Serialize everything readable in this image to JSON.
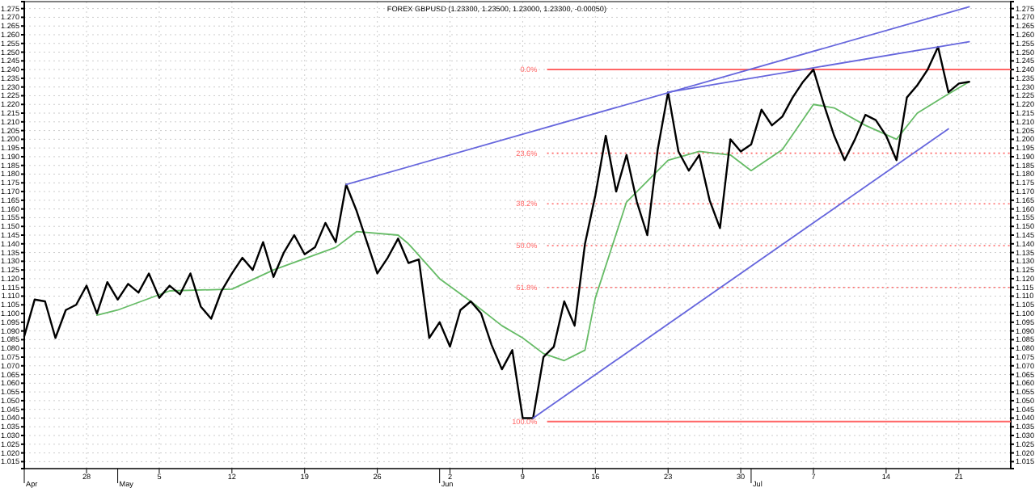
{
  "chart_data": {
    "type": "line",
    "title": "FOREX GBPUSD (1.23300, 1.23500, 1.23000, 1.23300, -0.00050)",
    "xlim": [
      "--04-22",
      "--07-26"
    ],
    "xticks": [
      {
        "value": "--04-28",
        "label": "28"
      },
      {
        "value": "--05-05",
        "label": "5"
      },
      {
        "value": "--05-12",
        "label": "12"
      },
      {
        "value": "--05-19",
        "label": "19"
      },
      {
        "value": "--05-26",
        "label": "26"
      },
      {
        "value": "--06-02",
        "label": "2"
      },
      {
        "value": "--06-09",
        "label": "9"
      },
      {
        "value": "--06-16",
        "label": "16"
      },
      {
        "value": "--06-23",
        "label": "23"
      },
      {
        "value": "--06-30",
        "label": "30"
      },
      {
        "value": "--07-07",
        "label": "7"
      },
      {
        "value": "--07-14",
        "label": "14"
      },
      {
        "value": "--07-21",
        "label": "21"
      }
    ],
    "ylim": [
      1.011,
      1.279
    ],
    "yticks": [
      1.015,
      {
        "value": 1.02,
        "label": "1.020"
      },
      1.025,
      {
        "value": 1.03,
        "label": "1.030"
      },
      1.035,
      {
        "value": 1.04,
        "label": "1.040"
      },
      1.045,
      {
        "value": 1.05,
        "label": "1.050"
      },
      1.055,
      {
        "value": 1.06,
        "label": "1.060"
      },
      1.065,
      {
        "value": 1.07,
        "label": "1.070"
      },
      1.075,
      {
        "value": 1.08,
        "label": "1.080"
      },
      1.085,
      {
        "value": 1.09,
        "label": "1.090"
      },
      1.095,
      {
        "value": 1.1,
        "label": "1.100"
      },
      1.105,
      {
        "value": 1.11,
        "label": "1.110"
      },
      1.115,
      {
        "value": 1.12,
        "label": "1.120"
      },
      1.125,
      {
        "value": 1.13,
        "label": "1.130"
      },
      1.135,
      {
        "value": 1.14,
        "label": "1.140"
      },
      1.145,
      {
        "value": 1.15,
        "label": "1.150"
      },
      1.155,
      {
        "value": 1.16,
        "label": "1.160"
      },
      1.165,
      {
        "value": 1.17,
        "label": "1.170"
      },
      1.175,
      {
        "value": 1.18,
        "label": "1.180"
      },
      1.185,
      {
        "value": 1.19,
        "label": "1.190"
      },
      1.195,
      {
        "value": 1.2,
        "label": "1.200"
      },
      1.205,
      {
        "value": 1.21,
        "label": "1.210"
      },
      1.215,
      {
        "value": 1.22,
        "label": "1.220"
      },
      1.225,
      {
        "value": 1.23,
        "label": "1.230"
      },
      1.235,
      {
        "value": 1.24,
        "label": "1.240"
      },
      1.245,
      {
        "value": 1.25,
        "label": "1.250"
      },
      1.255,
      {
        "value": 1.26,
        "label": "1.260"
      },
      1.265,
      {
        "value": 1.27,
        "label": "1.270"
      },
      1.275
    ],
    "y2lim": [
      1.011,
      1.279
    ],
    "y2ticks": [
      1.015,
      {
        "value": 1.02,
        "label": "1.020"
      },
      1.025,
      {
        "value": 1.03,
        "label": "1.030"
      },
      1.035,
      {
        "value": 1.04,
        "label": "1.040"
      },
      1.045,
      {
        "value": 1.05,
        "label": "1.050"
      },
      1.055,
      {
        "value": 1.06,
        "label": "1.060"
      },
      1.065,
      {
        "value": 1.07,
        "label": "1.070"
      },
      1.075,
      {
        "value": 1.08,
        "label": "1.080"
      },
      1.085,
      {
        "value": 1.09,
        "label": "1.090"
      },
      1.095,
      {
        "value": 1.1,
        "label": "1.100"
      },
      1.105,
      {
        "value": 1.11,
        "label": "1.110"
      },
      1.115,
      {
        "value": 1.12,
        "label": "1.120"
      },
      1.125,
      {
        "value": 1.13,
        "label": "1.130"
      },
      1.135,
      {
        "value": 1.14,
        "label": "1.140"
      },
      1.145,
      {
        "value": 1.15,
        "label": "1.150"
      },
      1.155,
      {
        "value": 1.16,
        "label": "1.160"
      },
      1.165,
      {
        "value": 1.17,
        "label": "1.170"
      },
      1.175,
      {
        "value": 1.18,
        "label": "1.180"
      },
      1.185,
      {
        "value": 1.19,
        "label": "1.190"
      },
      1.195,
      {
        "value": 1.2,
        "label": "1.200"
      },
      1.205,
      {
        "value": 1.21,
        "label": "1.210"
      },
      1.215,
      {
        "value": 1.22,
        "label": "1.220"
      },
      1.225,
      {
        "value": 1.23,
        "label": "1.230"
      },
      1.235,
      {
        "value": 1.24,
        "label": "1.240"
      },
      1.245,
      {
        "value": 1.25,
        "label": "1.250"
      },
      1.255,
      {
        "value": 1.26,
        "label": "1.260"
      },
      1.265,
      {
        "value": 1.27,
        "label": "1.270"
      },
      1.275
    ],
    "grid": true,
    "marker": "none",
    "series": [
      {
        "color": "#66bb66",
        "x": [
          "--04-29",
          "--05-01",
          "--05-06",
          "--05-12",
          "--05-16",
          "--05-22",
          "--05-24",
          "--05-28",
          "--05-29",
          "--06-01",
          "--06-04",
          "--06-07",
          "--06-09",
          "--06-11",
          "--06-13",
          "--06-15",
          "--06-16",
          "--06-19",
          "--06-23",
          "--06-26",
          "--06-29",
          "--07-01",
          "--07-04",
          "--07-07",
          "--07-09",
          "--07-12",
          "--07-15",
          "--07-17",
          "--07-20",
          "--07-22"
        ],
        "values": [
          1.099,
          1.102,
          1.113,
          1.114,
          1.125,
          1.138,
          1.147,
          1.145,
          1.14,
          1.12,
          1.107,
          1.093,
          1.086,
          1.077,
          1.073,
          1.079,
          1.109,
          1.164,
          1.188,
          1.193,
          1.191,
          1.182,
          1.194,
          1.22,
          1.218,
          1.208,
          1.2,
          1.215,
          1.226,
          1.233
        ]
      },
      {
        "color": "#000000",
        "x": [
          "--04-22",
          "--04-23",
          "--04-24",
          "--04-25",
          "--04-26",
          "--04-27",
          "--04-28",
          "--04-29",
          "--04-30",
          "--05-01",
          "--05-02",
          "--05-03",
          "--05-04",
          "--05-05",
          "--05-06",
          "--05-07",
          "--05-08",
          "--05-09",
          "--05-10",
          "--05-11",
          "--05-12",
          "--05-13",
          "--05-14",
          "--05-15",
          "--05-16",
          "--05-17",
          "--05-18",
          "--05-19",
          "--05-20",
          "--05-21",
          "--05-22",
          "--05-23",
          "--05-24",
          "--05-25",
          "--05-26",
          "--05-27",
          "--05-28",
          "--05-29",
          "--05-30",
          "--05-31",
          "--06-01",
          "--06-02",
          "--06-03",
          "--06-04",
          "--06-05",
          "--06-06",
          "--06-07",
          "--06-08",
          "--06-09",
          "--06-10",
          "--06-11",
          "--06-12",
          "--06-13",
          "--06-14",
          "--06-15",
          "--06-16",
          "--06-17",
          "--06-18",
          "--06-19",
          "--06-20",
          "--06-21",
          "--06-22",
          "--06-23",
          "--06-24",
          "--06-25",
          "--06-26",
          "--06-27",
          "--06-28",
          "--06-29",
          "--06-30",
          "--07-01",
          "--07-02",
          "--07-03",
          "--07-04",
          "--07-05",
          "--07-06",
          "--07-07",
          "--07-08",
          "--07-09",
          "--07-10",
          "--07-11",
          "--07-12",
          "--07-13",
          "--07-14",
          "--07-15",
          "--07-16",
          "--07-17",
          "--07-18",
          "--07-19",
          "--07-20",
          "--07-21",
          "--07-22"
        ],
        "values": [
          1.087,
          1.108,
          1.107,
          1.086,
          1.102,
          1.105,
          1.116,
          1.1,
          1.118,
          1.108,
          1.117,
          1.112,
          1.123,
          1.109,
          1.116,
          1.111,
          1.123,
          1.104,
          1.097,
          1.113,
          1.123,
          1.132,
          1.125,
          1.141,
          1.121,
          1.135,
          1.145,
          1.134,
          1.138,
          1.152,
          1.141,
          1.174,
          1.159,
          1.141,
          1.123,
          1.132,
          1.143,
          1.129,
          1.131,
          1.086,
          1.095,
          1.081,
          1.102,
          1.107,
          1.1,
          1.082,
          1.068,
          1.079,
          1.04,
          1.04,
          1.075,
          1.081,
          1.107,
          1.093,
          1.14,
          1.168,
          1.202,
          1.17,
          1.191,
          1.164,
          1.145,
          1.194,
          1.227,
          1.193,
          1.182,
          1.191,
          1.165,
          1.149,
          1.2,
          1.193,
          1.197,
          1.217,
          1.208,
          1.213,
          1.224,
          1.233,
          1.24,
          1.22,
          1.202,
          1.188,
          1.2,
          1.214,
          1.211,
          1.202,
          1.188,
          1.224,
          1.231,
          1.24,
          1.253,
          1.227,
          1.232,
          1.233
        ]
      },
      {
        "color": "#6666dd",
        "x": [
          "--05-23",
          "--07-22"
        ],
        "values": [
          1.174,
          1.276
        ]
      },
      {
        "color": "#6666dd",
        "x": [
          "--06-23",
          "--07-22"
        ],
        "values": [
          1.227,
          1.256
        ]
      },
      {
        "color": "#6666dd",
        "x": [
          "--06-10",
          "--07-20"
        ],
        "values": [
          1.04,
          1.206
        ]
      }
    ],
    "ref_lines": [
      {
        "axis": "y",
        "value": 1.24,
        "color": "#ff6666",
        "line_style": "solid"
      },
      {
        "axis": "y",
        "value": 1.192,
        "color": "#ff6666",
        "line_style": "dotted"
      },
      {
        "axis": "y",
        "value": 1.163,
        "color": "#ff6666",
        "line_style": "dotted"
      },
      {
        "axis": "y",
        "value": 1.139,
        "color": "#ff6666",
        "line_style": "dotted"
      },
      {
        "axis": "y",
        "value": 1.115,
        "color": "#ff6666",
        "line_style": "dotted"
      },
      {
        "axis": "y",
        "value": 1.038,
        "color": "#ff6666",
        "line_style": "solid"
      }
    ],
    "annotations": [
      "0.0%",
      "23.6%",
      "38.2%",
      "50.0%",
      "61.8%",
      "100.0%",
      "Apr",
      "May",
      "Jun",
      "Jul"
    ]
  }
}
